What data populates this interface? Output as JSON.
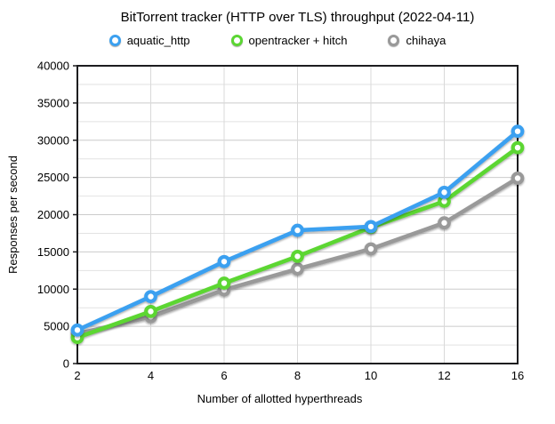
{
  "chart_data": {
    "type": "line",
    "title": "BitTorrent tracker (HTTP over TLS) throughput (2022-04-11)",
    "xlabel": "Number of allotted hyperthreads",
    "ylabel": "Responses per second",
    "categories": [
      "2",
      "4",
      "6",
      "8",
      "10",
      "12",
      "16"
    ],
    "series": [
      {
        "name": "aquatic_http",
        "color": "#3BA0F0",
        "values": [
          4500,
          9000,
          13700,
          17900,
          18400,
          23000,
          31200
        ]
      },
      {
        "name": "opentracker + hitch",
        "color": "#5BD633",
        "values": [
          3500,
          7000,
          10800,
          14400,
          18300,
          21800,
          29000
        ]
      },
      {
        "name": "chihaya",
        "color": "#999999",
        "values": [
          4000,
          6300,
          9900,
          12700,
          15400,
          18900,
          24900
        ]
      }
    ],
    "ylim": [
      0,
      40000
    ],
    "y_major_ticks": [
      0,
      5000,
      10000,
      15000,
      20000,
      25000,
      30000,
      35000,
      40000
    ],
    "y_minor_step": 2500,
    "grid": true,
    "legend_position": "top",
    "colors": {
      "axis_border": "#1d1d1f",
      "major_gridline": "#cbcbcb",
      "minor_gridline": "#e2e2e2",
      "vertical_gridline": "#d9d9d9",
      "text": "#000000",
      "marker_fill": "#ffffff"
    }
  }
}
